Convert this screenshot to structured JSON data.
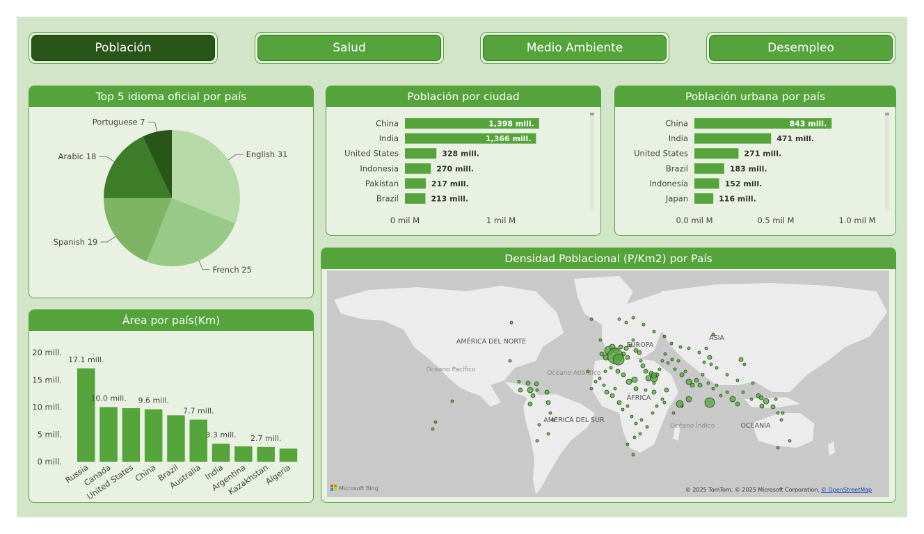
{
  "nav": {
    "tabs": [
      {
        "label": "Población",
        "active": true
      },
      {
        "label": "Salud",
        "active": false
      },
      {
        "label": "Medio Ambiente",
        "active": false
      },
      {
        "label": "Desempleo",
        "active": false
      }
    ]
  },
  "colors": {
    "accent": "#55a33b",
    "dark": "#2a5519",
    "background": "#d2e5c9",
    "card": "#e9f1e3",
    "map_land": "#ececec",
    "map_water": "#c9c9c9"
  },
  "pie": {
    "title": "Top 5 idioma oficial por país",
    "chart_data": {
      "type": "pie",
      "slices": [
        {
          "label": "English",
          "value": 31,
          "text": "English 31",
          "color": "#b6d9a8"
        },
        {
          "label": "French",
          "value": 25,
          "text": "French 25",
          "color": "#99c987"
        },
        {
          "label": "Spanish",
          "value": 19,
          "text": "Spanish 19",
          "color": "#7db565"
        },
        {
          "label": "Arabic",
          "value": 18,
          "text": "Arabic 18",
          "color": "#3d7d2a"
        },
        {
          "label": "Portuguese",
          "value": 7,
          "text": "Portuguese 7",
          "color": "#2a5519"
        }
      ]
    }
  },
  "city": {
    "title": "Población por ciudad",
    "chart_data": {
      "type": "bar",
      "orientation": "horizontal",
      "categories": [
        "China",
        "India",
        "United States",
        "Indonesia",
        "Pakistan",
        "Brazil"
      ],
      "values": [
        1398,
        1366,
        328,
        270,
        217,
        213
      ],
      "labels": [
        "1,398 mill.",
        "1,366 mill.",
        "328 mill.",
        "270 mill.",
        "217 mill.",
        "213 mill."
      ],
      "xlim": [
        0,
        1450
      ],
      "ticks": [
        {
          "value": 0,
          "label": "0 mil M"
        },
        {
          "value": 1000,
          "label": "1 mil M"
        }
      ]
    }
  },
  "urban": {
    "title": "Población urbana por país",
    "chart_data": {
      "type": "bar",
      "orientation": "horizontal",
      "categories": [
        "China",
        "India",
        "United States",
        "Brazil",
        "Indonesia",
        "Japan"
      ],
      "values": [
        843,
        471,
        271,
        183,
        152,
        116
      ],
      "labels": [
        "843 mill.",
        "471 mill.",
        "271 mill.",
        "183 mill.",
        "152 mill.",
        "116 mill."
      ],
      "xlim": [
        0,
        1000
      ],
      "ticks": [
        {
          "value": 0,
          "label": "0.0 mil M"
        },
        {
          "value": 500,
          "label": "0.5 mil M"
        },
        {
          "value": 1000,
          "label": "1.0 mil M"
        }
      ]
    }
  },
  "area": {
    "title": "Área por país(Km)",
    "chart_data": {
      "type": "bar",
      "categories": [
        "Russia",
        "Canada",
        "United States",
        "China",
        "Brazil",
        "Australia",
        "India",
        "Argentina",
        "Kazakhstan",
        "Algeria"
      ],
      "values": [
        17.1,
        10.0,
        9.8,
        9.6,
        8.5,
        7.7,
        3.3,
        2.8,
        2.7,
        2.4
      ],
      "labels": [
        "17.1 mill.",
        "10.0 mill.",
        "",
        "9.6 mill.",
        "",
        "7.7 mill.",
        "3.3 mill.",
        "",
        "2.7 mill.",
        ""
      ],
      "ylim": [
        0,
        20
      ],
      "yticks": [
        {
          "value": 20,
          "label": "20 mill."
        },
        {
          "value": 15,
          "label": "15 mill."
        },
        {
          "value": 10,
          "label": "10 mill."
        },
        {
          "value": 5,
          "label": "5 mill."
        },
        {
          "value": 0,
          "label": "0 mill."
        }
      ]
    }
  },
  "map": {
    "title": "Densidad Poblacional (P/Km2) por País",
    "labels": {
      "north_america": "AMÉRICA DEL NORTE",
      "south_america": "AMÉRICA DEL SUR",
      "europe": "EUROPA",
      "asia": "ASIA",
      "africa": "ÁFRICA",
      "oceania": "OCEANÍA",
      "pacific": "Océano Pacífico",
      "atlantic": "Océano Atlántico",
      "indian": "Océano Índico"
    },
    "bing_logo": "Microsoft Bing",
    "attribution": "© 2025 TomTom, © 2025 Microsoft Corporation,",
    "attribution_link": "© OpenStreetMap"
  }
}
